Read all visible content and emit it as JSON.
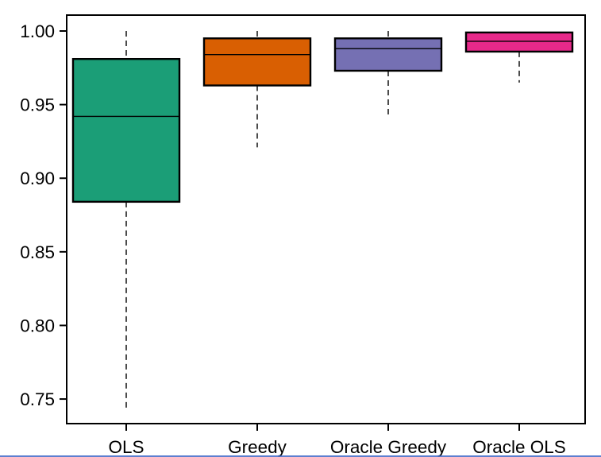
{
  "chart_data": {
    "type": "boxplot",
    "title": "",
    "xlabel": "",
    "ylabel": "",
    "grid": false,
    "legend": "none",
    "categories": [
      "OLS",
      "Greedy",
      "Oracle Greedy",
      "Oracle OLS"
    ],
    "ylim": [
      0.7333,
      1.0108
    ],
    "yticks": [
      1.0,
      0.95,
      0.9,
      0.85,
      0.8,
      0.75
    ],
    "ytick_labels": [
      "1.00",
      "0.95",
      "0.90",
      "0.85",
      "0.80",
      "0.75"
    ],
    "series": [
      {
        "name": "OLS",
        "color": "#1B9E77",
        "whisker_low": 0.742,
        "q1": 0.884,
        "median": 0.942,
        "q3": 0.981,
        "whisker_high": 1.0
      },
      {
        "name": "Greedy",
        "color": "#D95F02",
        "whisker_low": 0.921,
        "q1": 0.963,
        "median": 0.984,
        "q3": 0.995,
        "whisker_high": 1.0
      },
      {
        "name": "Oracle Greedy",
        "color": "#7570B3",
        "whisker_low": 0.941,
        "q1": 0.973,
        "median": 0.988,
        "q3": 0.995,
        "whisker_high": 1.0
      },
      {
        "name": "Oracle OLS",
        "color": "#E7298A",
        "whisker_low": 0.965,
        "q1": 0.986,
        "median": 0.993,
        "q3": 0.999,
        "whisker_high": 0.999
      }
    ],
    "style": {
      "box_border_color": "#000000",
      "whisker_style": "dashed",
      "whisker_caps": false,
      "axis_color": "#000000",
      "text_color": "#000000",
      "background": "#ffffff"
    }
  },
  "ui": {
    "bottom_edge_color": "#4169c8"
  }
}
